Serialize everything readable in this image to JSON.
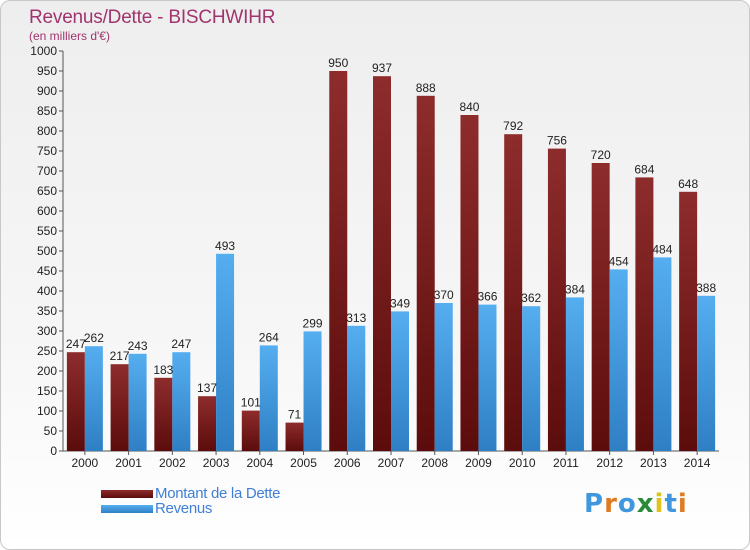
{
  "title": "Revenus/Dette - BISCHWIHR",
  "subtitle": "(en milliers d'€)",
  "colors": {
    "debt": "#7a1a1a",
    "revenue": "#3f97de",
    "title": "#a0346e"
  },
  "logo": {
    "text": "Proxiti",
    "colors": [
      "#3f97de",
      "#e07b22",
      "#3f97de",
      "#2a8a3a",
      "#e0c21a",
      "#3f97de",
      "#e07b22"
    ]
  },
  "chart_data": {
    "type": "bar",
    "categories": [
      "2000",
      "2001",
      "2002",
      "2003",
      "2004",
      "2005",
      "2006",
      "2007",
      "2008",
      "2009",
      "2010",
      "2011",
      "2012",
      "2013",
      "2014"
    ],
    "series": [
      {
        "name": "Montant de la Dette",
        "values": [
          247,
          217,
          183,
          137,
          101,
          71,
          950,
          937,
          888,
          840,
          792,
          756,
          720,
          684,
          648
        ]
      },
      {
        "name": "Revenus",
        "values": [
          262,
          243,
          247,
          493,
          264,
          299,
          313,
          349,
          370,
          366,
          362,
          384,
          454,
          484,
          388
        ]
      }
    ],
    "ylim": [
      0,
      1000
    ],
    "yticks": [
      0,
      50,
      100,
      150,
      200,
      250,
      300,
      350,
      400,
      450,
      500,
      550,
      600,
      650,
      700,
      750,
      800,
      850,
      900,
      950,
      1000
    ],
    "grid": false,
    "legend": "bottom-left"
  }
}
